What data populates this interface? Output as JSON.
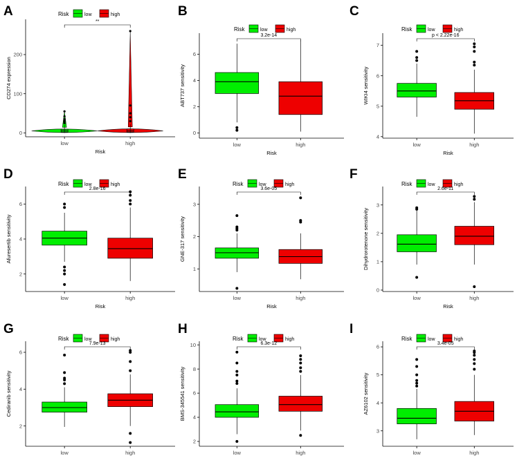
{
  "legend_title": "Risk",
  "groups": [
    "low",
    "high"
  ],
  "colors": {
    "low": "#00EE00",
    "high": "#EE0000",
    "axis": "#000000"
  },
  "chart_data": [
    {
      "panel": "A",
      "type": "violin",
      "xlabel": "Risk",
      "ylabel": "CD274 expression",
      "yticks": [
        0,
        100,
        200
      ],
      "ylim": [
        -10,
        290
      ],
      "pvalue": "**",
      "boxes": [
        {
          "group": "low",
          "q1": 2,
          "median": 5,
          "q3": 9,
          "whisker_low": 0,
          "whisker_high": 20,
          "outliers": [
            25,
            30,
            35,
            42,
            55
          ]
        },
        {
          "group": "high",
          "q1": 2,
          "median": 5,
          "q3": 10,
          "whisker_low": 0,
          "whisker_high": 22,
          "outliers": [
            30,
            40,
            50,
            70,
            260
          ]
        }
      ]
    },
    {
      "panel": "B",
      "type": "boxplot",
      "xlabel": "Risk",
      "ylabel": "ABT737 sensitivity",
      "yticks": [
        0,
        2,
        4,
        6
      ],
      "ylim": [
        -0.4,
        7.6
      ],
      "pvalue": "3.2e-14",
      "boxes": [
        {
          "group": "low",
          "q1": 3.0,
          "median": 3.9,
          "q3": 4.6,
          "whisker_low": 0.8,
          "whisker_high": 6.8,
          "outliers": [
            0.2,
            0.4
          ]
        },
        {
          "group": "high",
          "q1": 1.4,
          "median": 2.8,
          "q3": 3.9,
          "whisker_low": 0.1,
          "whisker_high": 7.1,
          "outliers": []
        }
      ]
    },
    {
      "panel": "C",
      "type": "boxplot",
      "xlabel": "Risk",
      "ylabel": "WIKI4 sensitivity",
      "yticks": [
        4,
        5,
        6,
        7
      ],
      "ylim": [
        3.95,
        7.4
      ],
      "pvalue": "p < 2.22e-16",
      "boxes": [
        {
          "group": "low",
          "q1": 5.3,
          "median": 5.5,
          "q3": 5.75,
          "whisker_low": 4.65,
          "whisker_high": 6.4,
          "outliers": [
            6.5,
            6.6,
            6.8
          ]
        },
        {
          "group": "high",
          "q1": 4.9,
          "median": 5.18,
          "q3": 5.45,
          "whisker_low": 4.1,
          "whisker_high": 6.2,
          "outliers": [
            6.35,
            6.45,
            6.8,
            6.95,
            7.05
          ]
        }
      ]
    },
    {
      "panel": "D",
      "type": "boxplot",
      "xlabel": "Risk",
      "ylabel": "Afuresertib sensitivity",
      "yticks": [
        2,
        4,
        6
      ],
      "ylim": [
        1.0,
        7.0
      ],
      "pvalue": "2.8e-16",
      "boxes": [
        {
          "group": "low",
          "q1": 3.65,
          "median": 4.05,
          "q3": 4.45,
          "whisker_low": 2.7,
          "whisker_high": 5.5,
          "outliers": [
            1.4,
            2.0,
            2.2,
            2.4,
            5.8,
            6.0
          ]
        },
        {
          "group": "high",
          "q1": 2.9,
          "median": 3.45,
          "q3": 4.05,
          "whisker_low": 1.6,
          "whisker_high": 5.8,
          "outliers": [
            6.0,
            6.2,
            6.5,
            6.7
          ]
        }
      ]
    },
    {
      "panel": "E",
      "type": "boxplot",
      "xlabel": "Risk",
      "ylabel": "GNE-317 sensitivity",
      "yticks": [
        1,
        2,
        3
      ],
      "ylim": [
        0.3,
        3.55
      ],
      "pvalue": "3.6e-05",
      "boxes": [
        {
          "group": "low",
          "q1": 1.33,
          "median": 1.5,
          "q3": 1.65,
          "whisker_low": 0.9,
          "whisker_high": 2.1,
          "outliers": [
            0.4,
            2.2,
            2.25,
            2.3,
            2.65
          ]
        },
        {
          "group": "high",
          "q1": 1.17,
          "median": 1.38,
          "q3": 1.6,
          "whisker_low": 0.68,
          "whisker_high": 2.1,
          "outliers": [
            2.45,
            2.5,
            3.2
          ]
        }
      ]
    },
    {
      "panel": "F",
      "type": "boxplot",
      "xlabel": "Risk",
      "ylabel": "Dihydrorotenone sensitivity",
      "yticks": [
        0,
        1,
        2,
        3
      ],
      "ylim": [
        -0.05,
        3.65
      ],
      "pvalue": "2.6e-11",
      "boxes": [
        {
          "group": "low",
          "q1": 1.35,
          "median": 1.62,
          "q3": 1.95,
          "whisker_low": 0.9,
          "whisker_high": 2.8,
          "outliers": [
            0.45,
            2.85,
            2.9
          ]
        },
        {
          "group": "high",
          "q1": 1.6,
          "median": 1.9,
          "q3": 2.25,
          "whisker_low": 0.9,
          "whisker_high": 3.1,
          "outliers": [
            0.12,
            3.2,
            3.3
          ]
        }
      ]
    },
    {
      "panel": "G",
      "type": "boxplot",
      "xlabel": "Risk",
      "ylabel": "Cediranib sensitivity",
      "yticks": [
        2,
        4,
        6
      ],
      "ylim": [
        0.9,
        6.6
      ],
      "pvalue": "7.9e-13",
      "boxes": [
        {
          "group": "low",
          "q1": 2.75,
          "median": 3.0,
          "q3": 3.3,
          "whisker_low": 1.95,
          "whisker_high": 4.1,
          "outliers": [
            4.3,
            4.5,
            4.6,
            4.9,
            5.85
          ]
        },
        {
          "group": "high",
          "q1": 3.05,
          "median": 3.4,
          "q3": 3.75,
          "whisker_low": 2.0,
          "whisker_high": 4.8,
          "outliers": [
            1.1,
            1.6,
            5.0,
            5.5,
            6.0,
            6.1
          ]
        }
      ]
    },
    {
      "panel": "H",
      "type": "boxplot",
      "xlabel": "Risk",
      "ylabel": "BMS-345541 sensitivity",
      "yticks": [
        2,
        4,
        6,
        8,
        10
      ],
      "ylim": [
        1.6,
        10.3
      ],
      "pvalue": "6.3e-12",
      "boxes": [
        {
          "group": "low",
          "q1": 4.0,
          "median": 4.45,
          "q3": 5.05,
          "whisker_low": 2.6,
          "whisker_high": 6.4,
          "outliers": [
            2.0,
            6.8,
            7.0,
            7.5,
            7.8,
            8.5,
            9.4
          ]
        },
        {
          "group": "high",
          "q1": 4.5,
          "median": 5.05,
          "q3": 5.75,
          "whisker_low": 2.9,
          "whisker_high": 7.5,
          "outliers": [
            2.5,
            7.8,
            8.1,
            8.5,
            8.8,
            9.1
          ]
        }
      ]
    },
    {
      "panel": "I",
      "type": "boxplot",
      "xlabel": "Risk",
      "ylabel": "AZ6102 sensitivity",
      "yticks": [
        3,
        4,
        5,
        6
      ],
      "ylim": [
        2.45,
        6.2
      ],
      "pvalue": "3.4e-05",
      "boxes": [
        {
          "group": "low",
          "q1": 3.25,
          "median": 3.45,
          "q3": 3.8,
          "whisker_low": 2.7,
          "whisker_high": 4.5,
          "outliers": [
            4.6,
            4.7,
            4.8,
            5.0,
            5.3,
            5.55
          ]
        },
        {
          "group": "high",
          "q1": 3.35,
          "median": 3.7,
          "q3": 4.05,
          "whisker_low": 2.85,
          "whisker_high": 5.0,
          "outliers": [
            5.2,
            5.4,
            5.55,
            5.7,
            5.8,
            5.85
          ]
        }
      ]
    }
  ]
}
